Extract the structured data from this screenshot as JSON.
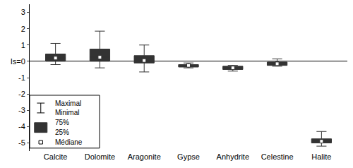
{
  "chart_data": {
    "type": "box",
    "categories": [
      "Calcite",
      "Dolomite",
      "Aragonite",
      "Gypse",
      "Anhydrite",
      "Celestine",
      "Halite"
    ],
    "series": [
      {
        "color": "#333333",
        "min": [
          -0.2,
          -0.4,
          -0.65,
          -0.4,
          -0.6,
          -0.3,
          -5.2
        ],
        "q1": [
          0.0,
          0.0,
          -0.1,
          -0.35,
          -0.5,
          -0.25,
          -5.0
        ],
        "median": [
          0.2,
          0.25,
          0.05,
          -0.25,
          -0.4,
          -0.15,
          -4.9
        ],
        "q3": [
          0.45,
          0.75,
          0.35,
          -0.2,
          -0.3,
          -0.05,
          -4.75
        ],
        "max": [
          1.1,
          1.85,
          1.0,
          -0.1,
          -0.25,
          0.15,
          -4.3
        ]
      }
    ],
    "ylim": [
      -5.5,
      3.5
    ],
    "yticks": [
      -5,
      -4,
      -3,
      -2,
      -1,
      {
        "value": 0,
        "label": "Is=0"
      },
      1,
      2,
      3
    ],
    "grid": false,
    "legend": "lower left",
    "annotations": [
      "Maximal",
      "Minimal",
      "75%",
      "25%",
      "Médiane"
    ]
  }
}
